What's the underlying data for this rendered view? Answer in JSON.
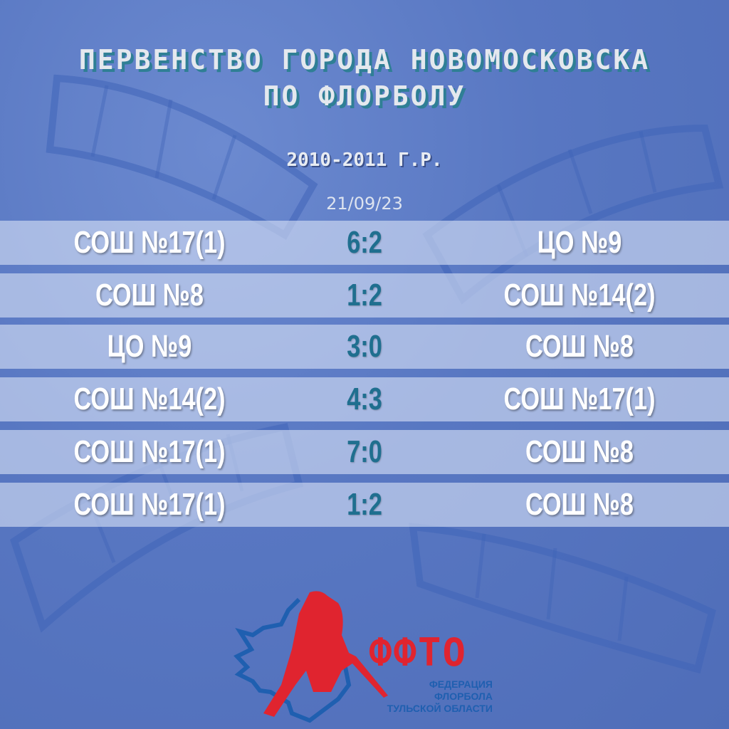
{
  "header": {
    "title_line1": "ПЕРВЕНСТВО ГОРОДА НОВОМОСКОВСКА",
    "title_line2": "ПО ФЛОРБОЛУ",
    "age_group": "2010-2011 Г.Р.",
    "date": "21/09/23"
  },
  "matches": [
    {
      "home": "СОШ №17(1)",
      "score": "6:2",
      "away": "ЦО №9"
    },
    {
      "home": "СОШ №8",
      "score": "1:2",
      "away": "СОШ №14(2)"
    },
    {
      "home": "ЦО №9",
      "score": "3:0",
      "away": "СОШ №8"
    },
    {
      "home": "СОШ №14(2)",
      "score": "4:3",
      "away": "СОШ №17(1)"
    },
    {
      "home": "СОШ №17(1)",
      "score": "7:0",
      "away": "СОШ №8"
    },
    {
      "home": "СОШ №17(1)",
      "score": "1:2",
      "away": "СОШ №8"
    }
  ],
  "logo": {
    "name": "ФФТО",
    "subtitle_line1": "ФЕДЕРАЦИЯ ФЛОРБОЛА",
    "subtitle_line2": "ТУЛЬСКОЙ ОБЛАСТИ"
  },
  "colors": {
    "background": "#5877c2",
    "score": "#1f6f8f",
    "logo_red": "#e0242f",
    "logo_blue": "#1f5fb0"
  }
}
